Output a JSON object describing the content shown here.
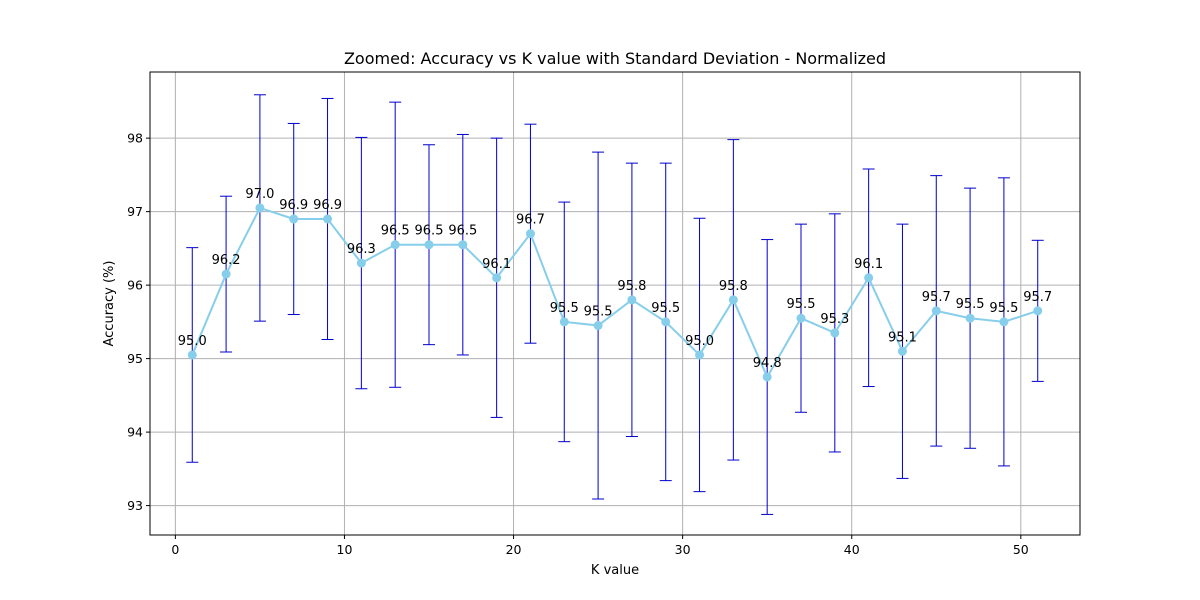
{
  "chart_data": {
    "type": "line",
    "title": "Zoomed: Accuracy vs K value with Standard Deviation - Normalized",
    "xlabel": "K value",
    "ylabel": "Accuracy (%)",
    "xlim": [
      -1.5,
      53.5
    ],
    "ylim": [
      92.6,
      98.9
    ],
    "xticks": [
      0,
      10,
      20,
      30,
      40,
      50
    ],
    "yticks": [
      93,
      94,
      95,
      96,
      97,
      98
    ],
    "grid": true,
    "line_color": "#87ceeb",
    "errorbar_color": "#0000cd",
    "series": [
      {
        "x": [
          1,
          3,
          5,
          7,
          9,
          11,
          13,
          15,
          17,
          19,
          21,
          23,
          25,
          27,
          29,
          31,
          33,
          35,
          37,
          39,
          41,
          43,
          45,
          47,
          49,
          51
        ],
        "values": [
          95.05,
          96.15,
          97.05,
          96.9,
          96.9,
          96.3,
          96.55,
          96.55,
          96.55,
          96.1,
          96.7,
          95.5,
          95.45,
          95.8,
          95.5,
          95.05,
          95.8,
          94.75,
          95.55,
          95.35,
          96.1,
          95.1,
          95.65,
          95.55,
          95.5,
          95.65
        ],
        "std": [
          1.46,
          1.06,
          1.54,
          1.3,
          1.64,
          1.71,
          1.94,
          1.36,
          1.5,
          1.9,
          1.49,
          1.63,
          2.36,
          1.86,
          2.16,
          1.86,
          2.18,
          1.87,
          1.28,
          1.62,
          1.48,
          1.73,
          1.84,
          1.77,
          1.96,
          0.96
        ],
        "labels": [
          "95.0",
          "96.2",
          "97.0",
          "96.9",
          "96.9",
          "96.3",
          "96.5",
          "96.5",
          "96.5",
          "96.1",
          "96.7",
          "95.5",
          "95.5",
          "95.8",
          "95.5",
          "95.0",
          "95.8",
          "94.8",
          "95.5",
          "95.3",
          "96.1",
          "95.1",
          "95.7",
          "95.5",
          "95.5",
          "95.7"
        ]
      }
    ]
  }
}
